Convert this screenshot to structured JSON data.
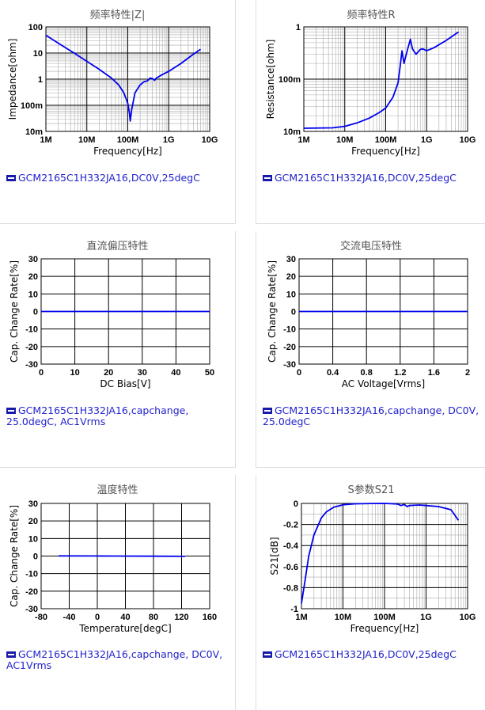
{
  "chart_data": [
    {
      "id": "c1",
      "type": "line",
      "title": "频率特性|Z|",
      "xlabel": "Frequency[Hz]",
      "ylabel": "Impedance[ohm]",
      "xscale": "log",
      "yscale": "log",
      "xlim": [
        1000000,
        10000000000
      ],
      "ylim": [
        0.01,
        100
      ],
      "xticks": [
        {
          "v": 1000000,
          "label": "1M"
        },
        {
          "v": 10000000,
          "label": "10M"
        },
        {
          "v": 100000000,
          "label": "100M"
        },
        {
          "v": 1000000000,
          "label": "1G"
        },
        {
          "v": 10000000000,
          "label": "10G"
        }
      ],
      "yticks": [
        {
          "v": 100,
          "label": "100"
        },
        {
          "v": 10,
          "label": "10"
        },
        {
          "v": 1,
          "label": "1"
        },
        {
          "v": 0.1,
          "label": "100m"
        },
        {
          "v": 0.01,
          "label": "10m"
        }
      ],
      "color": "#0000ee",
      "series": [
        {
          "name": "GCM2165C1H332JA16,DC0V,25degC",
          "points": [
            [
              1000000.0,
              48
            ],
            [
              2000000.0,
              24
            ],
            [
              5000000.0,
              9.7
            ],
            [
              10000000.0,
              4.8
            ],
            [
              20000000.0,
              2.4
            ],
            [
              40000000.0,
              1.1
            ],
            [
              60000000.0,
              0.6
            ],
            [
              80000000.0,
              0.3
            ],
            [
              100000000.0,
              0.12
            ],
            [
              110000000.0,
              0.05
            ],
            [
              115000000.0,
              0.025
            ],
            [
              125000000.0,
              0.07
            ],
            [
              150000000.0,
              0.3
            ],
            [
              200000000.0,
              0.6
            ],
            [
              250000000.0,
              0.8
            ],
            [
              300000000.0,
              0.85
            ],
            [
              350000000.0,
              1.1
            ],
            [
              400000000.0,
              1.05
            ],
            [
              450000000.0,
              0.9
            ],
            [
              500000000.0,
              1.1
            ],
            [
              700000000.0,
              1.5
            ],
            [
              1000000000.0,
              2.0
            ],
            [
              2000000000.0,
              4.0
            ],
            [
              4000000000.0,
              9
            ],
            [
              6000000000.0,
              14
            ]
          ]
        }
      ],
      "legend": "GCM2165C1H332JA16,DC0V,25degC"
    },
    {
      "id": "c2",
      "type": "line",
      "title": "频率特性R",
      "xlabel": "Frequency[Hz]",
      "ylabel": "Resistance[ohm]",
      "xscale": "log",
      "yscale": "log",
      "xlim": [
        1000000,
        10000000000
      ],
      "ylim": [
        0.01,
        1
      ],
      "xticks": [
        {
          "v": 1000000,
          "label": "1M"
        },
        {
          "v": 10000000,
          "label": "10M"
        },
        {
          "v": 100000000,
          "label": "100M"
        },
        {
          "v": 1000000000,
          "label": "1G"
        },
        {
          "v": 10000000000,
          "label": "10G"
        }
      ],
      "yticks": [
        {
          "v": 1,
          "label": "1"
        },
        {
          "v": 0.1,
          "label": "100m"
        },
        {
          "v": 0.01,
          "label": "10m"
        }
      ],
      "color": "#0000ee",
      "series": [
        {
          "name": "GCM2165C1H332JA16,DC0V,25degC",
          "points": [
            [
              1000000.0,
              0.0115
            ],
            [
              5000000.0,
              0.0117
            ],
            [
              10000000.0,
              0.0125
            ],
            [
              20000000.0,
              0.0145
            ],
            [
              40000000.0,
              0.018
            ],
            [
              70000000.0,
              0.023
            ],
            [
              100000000.0,
              0.028
            ],
            [
              150000000.0,
              0.045
            ],
            [
              200000000.0,
              0.085
            ],
            [
              230000000.0,
              0.2
            ],
            [
              250000000.0,
              0.35
            ],
            [
              280000000.0,
              0.2
            ],
            [
              300000000.0,
              0.25
            ],
            [
              350000000.0,
              0.4
            ],
            [
              400000000.0,
              0.58
            ],
            [
              450000000.0,
              0.38
            ],
            [
              550000000.0,
              0.3
            ],
            [
              700000000.0,
              0.37
            ],
            [
              800000000.0,
              0.38
            ],
            [
              1000000000.0,
              0.35
            ],
            [
              1500000000.0,
              0.4
            ],
            [
              3000000000.0,
              0.55
            ],
            [
              6000000000.0,
              0.8
            ]
          ]
        }
      ],
      "legend": "GCM2165C1H332JA16,DC0V,25degC"
    },
    {
      "id": "c3",
      "type": "line",
      "title": "直流偏压特性",
      "xlabel": "DC Bias[V]",
      "ylabel": "Cap. Change Rate[%]",
      "xscale": "linear",
      "yscale": "linear",
      "xlim": [
        0,
        50
      ],
      "ylim": [
        -30,
        30
      ],
      "xticks": [
        {
          "v": 0,
          "label": "0"
        },
        {
          "v": 10,
          "label": "10"
        },
        {
          "v": 20,
          "label": "20"
        },
        {
          "v": 30,
          "label": "30"
        },
        {
          "v": 40,
          "label": "40"
        },
        {
          "v": 50,
          "label": "50"
        }
      ],
      "yticks": [
        {
          "v": 30,
          "label": "30"
        },
        {
          "v": 20,
          "label": "20"
        },
        {
          "v": 10,
          "label": "10"
        },
        {
          "v": 0,
          "label": "0"
        },
        {
          "v": -10,
          "label": "-10"
        },
        {
          "v": -20,
          "label": "-20"
        },
        {
          "v": -30,
          "label": "-30"
        }
      ],
      "color": "#0000ee",
      "series": [
        {
          "name": "GCM2165C1H332JA16,capchange, 25.0degC, AC1Vrms",
          "points": [
            [
              0,
              0
            ],
            [
              10,
              0
            ],
            [
              20,
              0
            ],
            [
              30,
              0
            ],
            [
              40,
              0
            ],
            [
              50,
              0
            ]
          ]
        }
      ],
      "legend": "GCM2165C1H332JA16,capchange, 25.0degC, AC1Vrms"
    },
    {
      "id": "c4",
      "type": "line",
      "title": "交流电压特性",
      "xlabel": "AC Voltage[Vrms]",
      "ylabel": "Cap. Change Rate[%]",
      "xscale": "linear",
      "yscale": "linear",
      "xlim": [
        0,
        2
      ],
      "ylim": [
        -30,
        30
      ],
      "xticks": [
        {
          "v": 0,
          "label": "0"
        },
        {
          "v": 0.4,
          "label": "0.4"
        },
        {
          "v": 0.8,
          "label": "0.8"
        },
        {
          "v": 1.2,
          "label": "1.2"
        },
        {
          "v": 1.6,
          "label": "1.6"
        },
        {
          "v": 2,
          "label": "2"
        }
      ],
      "yticks": [
        {
          "v": 30,
          "label": "30"
        },
        {
          "v": 20,
          "label": "20"
        },
        {
          "v": 10,
          "label": "10"
        },
        {
          "v": 0,
          "label": "0"
        },
        {
          "v": -10,
          "label": "-10"
        },
        {
          "v": -20,
          "label": "-20"
        },
        {
          "v": -30,
          "label": "-30"
        }
      ],
      "color": "#0000ee",
      "series": [
        {
          "name": "GCM2165C1H332JA16,capchange, DC0V, 25.0degC",
          "points": [
            [
              0,
              0
            ],
            [
              0.5,
              0
            ],
            [
              1,
              0
            ],
            [
              1.5,
              0
            ],
            [
              2,
              0
            ]
          ]
        }
      ],
      "legend": "GCM2165C1H332JA16,capchange, DC0V, 25.0degC"
    },
    {
      "id": "c5",
      "type": "line",
      "title": "温度特性",
      "xlabel": "Temperature[degC]",
      "ylabel": "Cap. Change Rate[%]",
      "xscale": "linear",
      "yscale": "linear",
      "xlim": [
        -80,
        160
      ],
      "ylim": [
        -30,
        30
      ],
      "xticks": [
        {
          "v": -80,
          "label": "-80"
        },
        {
          "v": -40,
          "label": "-40"
        },
        {
          "v": 0,
          "label": "0"
        },
        {
          "v": 40,
          "label": "40"
        },
        {
          "v": 80,
          "label": "80"
        },
        {
          "v": 120,
          "label": "120"
        },
        {
          "v": 160,
          "label": "160"
        }
      ],
      "yticks": [
        {
          "v": 30,
          "label": "30"
        },
        {
          "v": 20,
          "label": "20"
        },
        {
          "v": 10,
          "label": "10"
        },
        {
          "v": 0,
          "label": "0"
        },
        {
          "v": -10,
          "label": "-10"
        },
        {
          "v": -20,
          "label": "-20"
        },
        {
          "v": -30,
          "label": "-30"
        }
      ],
      "color": "#0000ee",
      "series": [
        {
          "name": "GCM2165C1H332JA16,capchange, DC0V, AC1Vrms",
          "points": [
            [
              -55,
              0.1
            ],
            [
              0,
              0.05
            ],
            [
              25,
              0
            ],
            [
              85,
              -0.1
            ],
            [
              125,
              -0.2
            ]
          ]
        }
      ],
      "legend": "GCM2165C1H332JA16,capchange, DC0V, AC1Vrms"
    },
    {
      "id": "c6",
      "type": "line",
      "title": "S参数S21",
      "xlabel": "Frequency[Hz]",
      "ylabel": "S21[dB]",
      "xscale": "log",
      "yscale": "linear",
      "xlim": [
        1000000,
        10000000000
      ],
      "ylim": [
        -1,
        0
      ],
      "xticks": [
        {
          "v": 1000000,
          "label": "1M"
        },
        {
          "v": 10000000,
          "label": "10M"
        },
        {
          "v": 100000000,
          "label": "100M"
        },
        {
          "v": 1000000000,
          "label": "1G"
        },
        {
          "v": 10000000000,
          "label": "10G"
        }
      ],
      "yticks": [
        {
          "v": 0,
          "label": "0"
        },
        {
          "v": -0.2,
          "label": "-0.2"
        },
        {
          "v": -0.4,
          "label": "-0.4"
        },
        {
          "v": -0.6,
          "label": "-0.6"
        },
        {
          "v": -0.8,
          "label": "-0.8"
        },
        {
          "v": -1,
          "label": "-1"
        }
      ],
      "color": "#0000ee",
      "series": [
        {
          "name": "GCM2165C1H332JA16,DC0V,25degC",
          "points": [
            [
              1000000.0,
              -0.95
            ],
            [
              1200000.0,
              -0.75
            ],
            [
              1500000.0,
              -0.5
            ],
            [
              2000000.0,
              -0.3
            ],
            [
              3000000.0,
              -0.14
            ],
            [
              4000000.0,
              -0.08
            ],
            [
              6000000.0,
              -0.035
            ],
            [
              10000000.0,
              -0.013
            ],
            [
              20000000.0,
              -0.004
            ],
            [
              50000000.0,
              -0.001
            ],
            [
              100000000.0,
              0
            ],
            [
              200000000.0,
              -0.005
            ],
            [
              250000000.0,
              -0.02
            ],
            [
              300000000.0,
              -0.01
            ],
            [
              350000000.0,
              -0.03
            ],
            [
              400000000.0,
              -0.02
            ],
            [
              500000000.0,
              -0.018
            ],
            [
              700000000.0,
              -0.015
            ],
            [
              1000000000.0,
              -0.02
            ],
            [
              2000000000.0,
              -0.03
            ],
            [
              4000000000.0,
              -0.06
            ],
            [
              6000000000.0,
              -0.16
            ]
          ]
        }
      ],
      "legend": "GCM2165C1H332JA16,DC0V,25degC"
    }
  ]
}
